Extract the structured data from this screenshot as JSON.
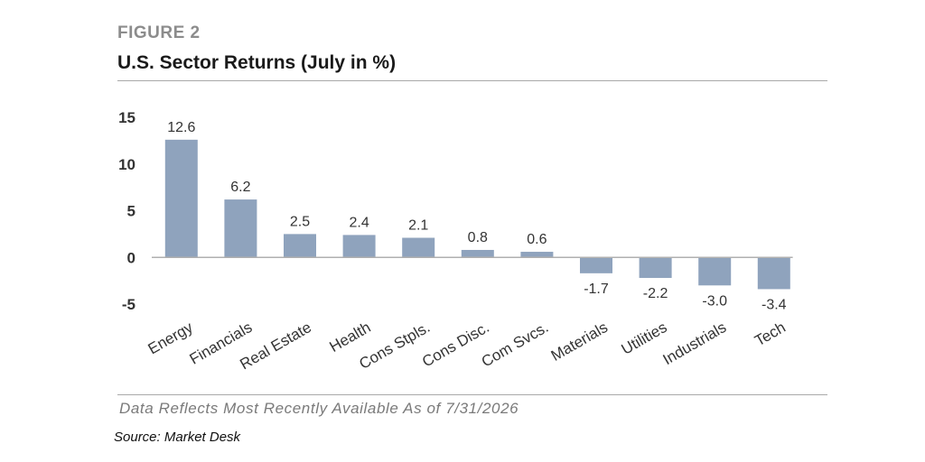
{
  "figure_label": "FIGURE 2",
  "footer_note": "Data Reflects Most Recently Available As of 7/31/2026",
  "source": "Source: Market Desk",
  "colors": {
    "bar": "#8fa3bd",
    "axis": "#b0b0b0",
    "text": "#333333"
  },
  "chart_data": {
    "type": "bar",
    "title": "U.S. Sector Returns (July in %)",
    "categories": [
      "Energy",
      "Financials",
      "Real Estate",
      "Health",
      "Cons Stpls.",
      "Cons Disc.",
      "Com Svcs.",
      "Materials",
      "Utilities",
      "Industrials",
      "Tech"
    ],
    "values": [
      12.6,
      6.2,
      2.5,
      2.4,
      2.1,
      0.8,
      0.6,
      -1.7,
      -2.2,
      -3.0,
      -3.4
    ],
    "value_labels": [
      "12.6",
      "6.2",
      "2.5",
      "2.4",
      "2.1",
      "0.8",
      "0.6",
      "-1.7",
      "-2.2",
      "-3.0",
      "-3.4"
    ],
    "yticks": [
      15,
      10,
      5,
      0,
      -5
    ],
    "ylim": [
      -5,
      15
    ],
    "xlabel": "",
    "ylabel": "",
    "grid": false,
    "legend": "none"
  }
}
